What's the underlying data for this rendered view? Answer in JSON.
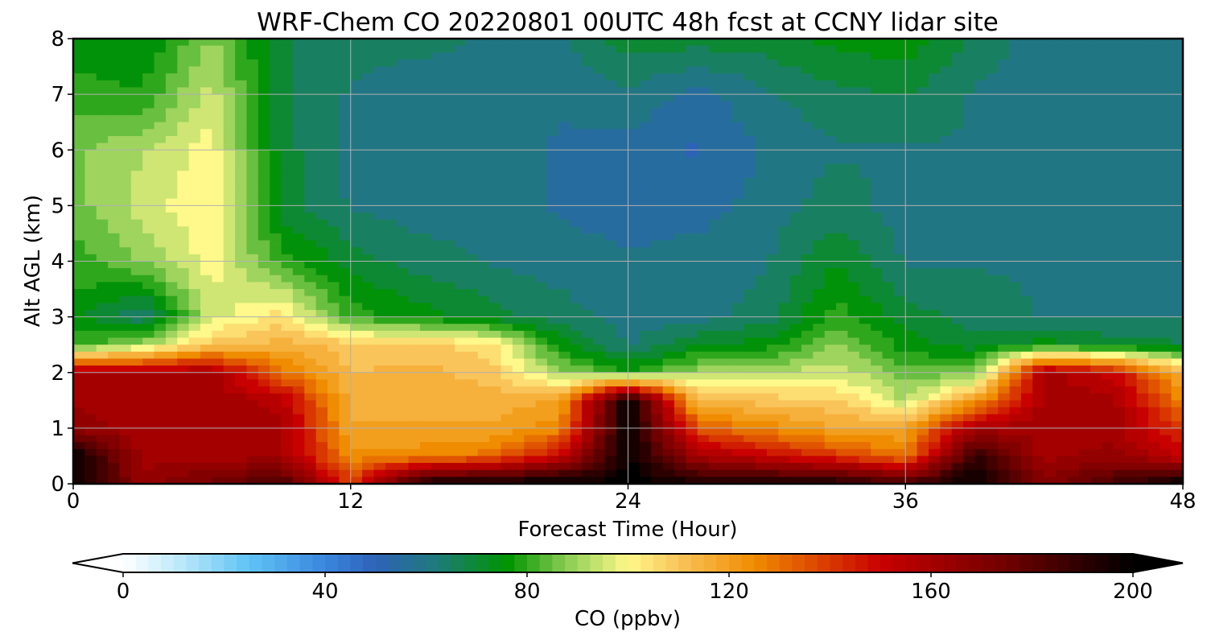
{
  "chart_data": {
    "type": "heatmap",
    "title": "WRF-Chem CO  20220801 00UTC 48h fcst at CCNY lidar site",
    "xlabel": "Forecast Time (Hour)",
    "ylabel": "Alt AGL (km)",
    "xlim": [
      0,
      48
    ],
    "ylim": [
      0,
      8
    ],
    "xticks": [
      "0",
      "12",
      "24",
      "36",
      "48"
    ],
    "yticks": [
      "0",
      "1",
      "2",
      "3",
      "4",
      "5",
      "6",
      "7",
      "8"
    ],
    "grid": true,
    "field": {
      "x": [
        0,
        3,
        6,
        9,
        12,
        15,
        18,
        21,
        24,
        27,
        30,
        33,
        36,
        39,
        42,
        45,
        48
      ],
      "y": [
        0,
        0.5,
        1,
        1.5,
        2,
        2.5,
        3,
        4,
        5,
        6,
        7,
        8
      ],
      "z": [
        [
          200,
          165,
          175,
          185,
          140,
          195,
          200,
          200,
          200,
          195,
          195,
          195,
          185,
          200,
          170,
          185,
          200
        ],
        [
          200,
          160,
          160,
          160,
          125,
          125,
          130,
          150,
          200,
          160,
          150,
          140,
          128,
          190,
          160,
          165,
          150
        ],
        [
          165,
          160,
          160,
          160,
          118,
          118,
          118,
          125,
          200,
          135,
          125,
          118,
          118,
          160,
          160,
          160,
          140
        ],
        [
          162,
          160,
          162,
          155,
          115,
          115,
          115,
          118,
          200,
          112,
          110,
          108,
          92,
          120,
          160,
          160,
          125
        ],
        [
          158,
          158,
          160,
          130,
          112,
          115,
          110,
          90,
          78,
          90,
          92,
          96,
          85,
          85,
          160,
          150,
          115
        ],
        [
          80,
          90,
          110,
          115,
          110,
          108,
          105,
          75,
          62,
          72,
          75,
          88,
          75,
          70,
          75,
          70,
          68
        ],
        [
          75,
          62,
          95,
          105,
          80,
          75,
          70,
          65,
          60,
          60,
          65,
          80,
          70,
          65,
          62,
          62,
          62
        ],
        [
          80,
          88,
          100,
          80,
          70,
          65,
          62,
          60,
          58,
          60,
          62,
          72,
          62,
          62,
          62,
          62,
          62
        ],
        [
          85,
          95,
          102,
          70,
          62,
          60,
          60,
          57,
          55,
          55,
          60,
          65,
          60,
          62,
          60,
          62,
          62
        ],
        [
          86,
          92,
          100,
          70,
          60,
          60,
          60,
          57,
          55,
          52,
          58,
          62,
          62,
          62,
          58,
          60,
          62
        ],
        [
          80,
          78,
          95,
          68,
          62,
          60,
          60,
          58,
          62,
          55,
          62,
          66,
          68,
          62,
          58,
          60,
          62
        ],
        [
          74,
          72,
          88,
          68,
          64,
          64,
          62,
          62,
          70,
          70,
          70,
          74,
          76,
          66,
          60,
          60,
          62
        ]
      ],
      "units": "ppbv"
    },
    "colorbar": {
      "label": "CO  (ppbv)",
      "min": 0,
      "max": 200,
      "ticks": [
        "0",
        "40",
        "80",
        "120",
        "160",
        "200"
      ],
      "extend": "both",
      "palette": [
        {
          "v": 0,
          "color": "#ffffff"
        },
        {
          "v": 10,
          "color": "#c4ecfb"
        },
        {
          "v": 25,
          "color": "#5fc3f4"
        },
        {
          "v": 40,
          "color": "#3a86df"
        },
        {
          "v": 50,
          "color": "#2d62b8"
        },
        {
          "v": 62,
          "color": "#1f7a7a"
        },
        {
          "v": 76,
          "color": "#009400"
        },
        {
          "v": 88,
          "color": "#8ccd55"
        },
        {
          "v": 100,
          "color": "#fff88a"
        },
        {
          "v": 110,
          "color": "#f9c45a"
        },
        {
          "v": 125,
          "color": "#f08c00"
        },
        {
          "v": 150,
          "color": "#c80000"
        },
        {
          "v": 175,
          "color": "#700000"
        },
        {
          "v": 200,
          "color": "#000000"
        }
      ]
    }
  }
}
